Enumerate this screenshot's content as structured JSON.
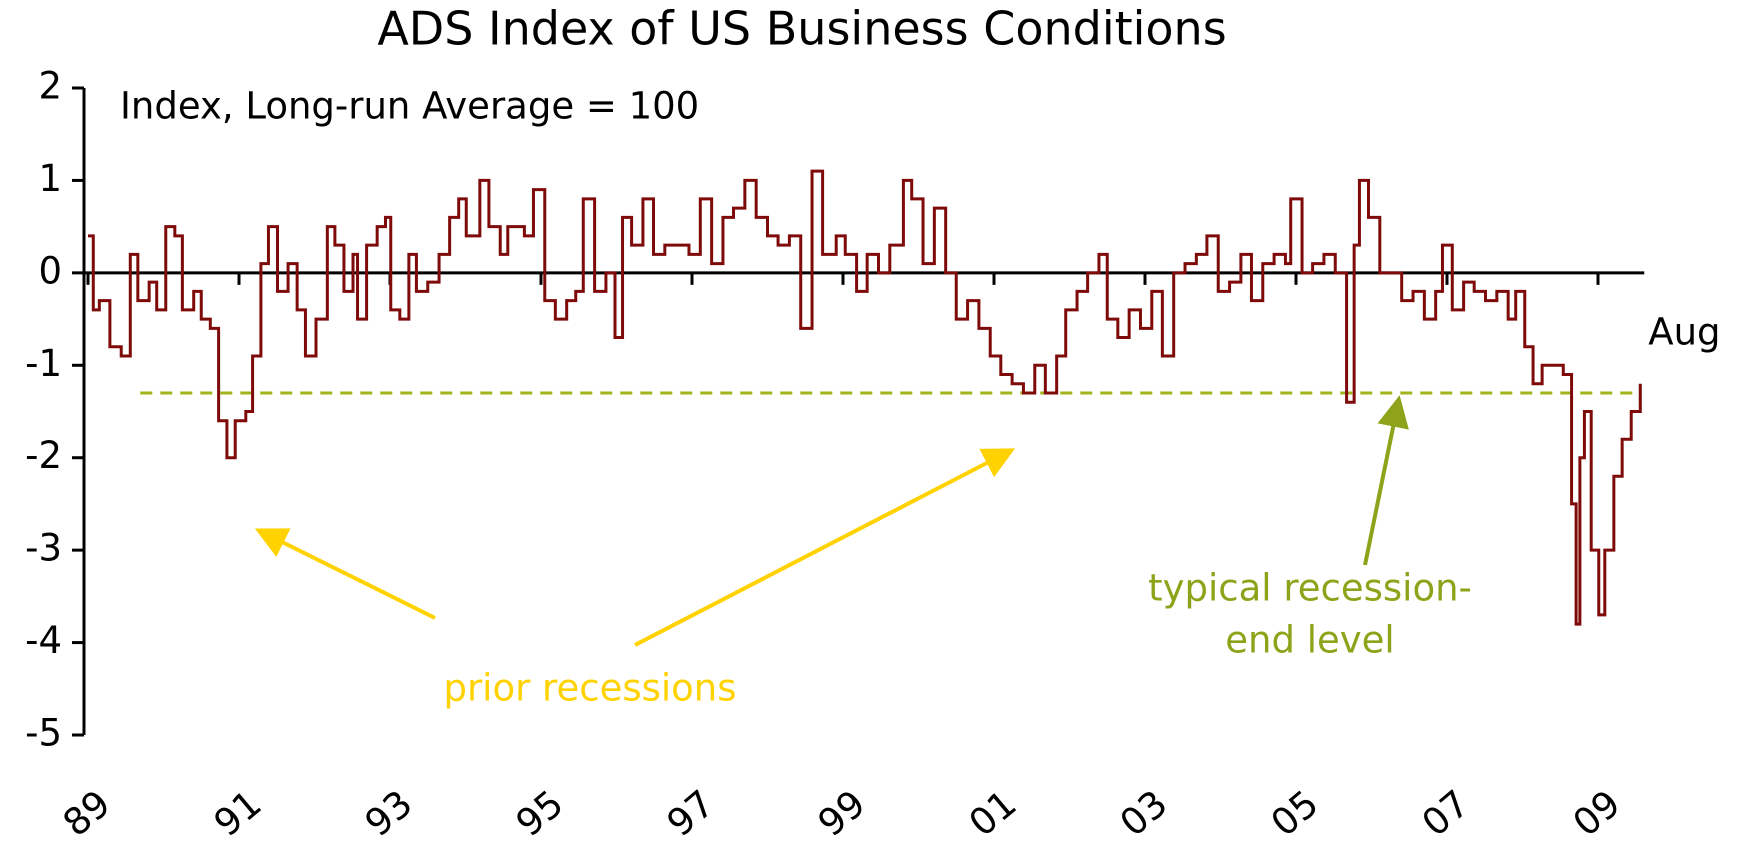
{
  "chart_data": {
    "type": "line",
    "title": "ADS Index of US Business Conditions",
    "subtitle": "Index, Long-run Average = 100",
    "end_label": "Aug",
    "annotations": [
      "prior recessions",
      "typical recession-",
      "end level"
    ],
    "reference_line": -1.3,
    "reference_color": "#a2b31c",
    "color": "#7f0a0a",
    "x": [
      1989.0,
      1989.07,
      1989.15,
      1989.29,
      1989.44,
      1989.56,
      1989.66,
      1989.81,
      1989.91,
      1990.03,
      1990.15,
      1990.25,
      1990.4,
      1990.5,
      1990.62,
      1990.73,
      1990.84,
      1990.95,
      1991.09,
      1991.18,
      1991.29,
      1991.39,
      1991.51,
      1991.65,
      1991.77,
      1991.88,
      1992.02,
      1992.17,
      1992.27,
      1992.39,
      1992.51,
      1992.57,
      1992.69,
      1992.83,
      1992.94,
      1993.01,
      1993.13,
      1993.25,
      1993.35,
      1993.5,
      1993.65,
      1993.79,
      1993.91,
      1994.01,
      1994.19,
      1994.31,
      1994.46,
      1994.56,
      1994.68,
      1994.78,
      1994.9,
      1995.05,
      1995.19,
      1995.34,
      1995.46,
      1995.56,
      1995.71,
      1995.86,
      1995.98,
      1996.08,
      1996.2,
      1996.35,
      1996.49,
      1996.64,
      1996.82,
      1996.96,
      1997.11,
      1997.26,
      1997.41,
      1997.55,
      1997.7,
      1997.85,
      1998.0,
      1998.14,
      1998.29,
      1998.44,
      1998.59,
      1998.73,
      1998.91,
      1999.03,
      1999.18,
      1999.32,
      1999.47,
      1999.62,
      1999.8,
      1999.91,
      2000.06,
      2000.21,
      2000.36,
      2000.5,
      2000.65,
      2000.8,
      2000.95,
      2001.09,
      2001.24,
      2001.39,
      2001.54,
      2001.68,
      2001.83,
      2001.95,
      2002.1,
      2002.24,
      2002.39,
      2002.5,
      2002.64,
      2002.79,
      2002.94,
      2003.09,
      2003.23,
      2003.38,
      2003.53,
      2003.68,
      2003.82,
      2003.97,
      2004.12,
      2004.27,
      2004.41,
      2004.56,
      2004.71,
      2004.86,
      2004.93,
      2005.08,
      2005.22,
      2005.37,
      2005.52,
      2005.67,
      2005.77,
      2005.84,
      2005.96,
      2006.11,
      2006.26,
      2006.4,
      2006.55,
      2006.7,
      2006.85,
      2006.94,
      2007.07,
      2007.22,
      2007.36,
      2007.51,
      2007.66,
      2007.81,
      2007.91,
      2008.03,
      2008.14,
      2008.26,
      2008.4,
      2008.54,
      2008.65,
      2008.71,
      2008.76,
      2008.82,
      2008.91,
      2009.01,
      2009.09,
      2009.21,
      2009.32,
      2009.44,
      2009.56
    ],
    "values": [
      0.4,
      -0.4,
      -0.3,
      -0.8,
      -0.9,
      0.2,
      -0.3,
      -0.1,
      -0.4,
      0.5,
      0.4,
      -0.4,
      -0.2,
      -0.5,
      -0.6,
      -1.6,
      -2.0,
      -1.6,
      -1.5,
      -0.9,
      0.1,
      0.5,
      -0.2,
      0.1,
      -0.4,
      -0.9,
      -0.5,
      0.5,
      0.3,
      -0.2,
      0.2,
      -0.5,
      0.3,
      0.5,
      0.6,
      -0.4,
      -0.5,
      0.2,
      -0.2,
      -0.1,
      0.2,
      0.6,
      0.8,
      0.4,
      1.0,
      0.5,
      0.2,
      0.5,
      0.5,
      0.4,
      0.9,
      -0.3,
      -0.5,
      -0.3,
      -0.2,
      0.8,
      -0.2,
      0.0,
      -0.7,
      0.6,
      0.3,
      0.8,
      0.2,
      0.3,
      0.3,
      0.2,
      0.8,
      0.1,
      0.6,
      0.7,
      1.0,
      0.6,
      0.4,
      0.3,
      0.4,
      -0.6,
      1.1,
      0.2,
      0.4,
      0.2,
      -0.2,
      0.2,
      0.0,
      0.3,
      1.0,
      0.8,
      0.1,
      0.7,
      0.0,
      -0.5,
      -0.3,
      -0.6,
      -0.9,
      -1.1,
      -1.2,
      -1.3,
      -1.0,
      -1.3,
      -0.9,
      -0.4,
      -0.2,
      0.0,
      0.2,
      -0.5,
      -0.7,
      -0.4,
      -0.6,
      -0.2,
      -0.9,
      0.0,
      0.1,
      0.2,
      0.4,
      -0.2,
      -0.1,
      0.2,
      -0.3,
      0.1,
      0.2,
      0.1,
      0.8,
      0.0,
      0.1,
      0.2,
      0.0,
      -1.4,
      0.3,
      1.0,
      0.6,
      0.0,
      0.0,
      -0.3,
      -0.2,
      -0.5,
      -0.2,
      0.3,
      -0.4,
      -0.1,
      -0.2,
      -0.3,
      -0.2,
      -0.5,
      -0.2,
      -0.8,
      -1.2,
      -1.0,
      -1.0,
      -1.1,
      -2.5,
      -3.8,
      -2.0,
      -1.5,
      -3.0,
      -3.7,
      -3.0,
      -2.2,
      -1.8,
      -1.5,
      -1.2
    ],
    "xlim": [
      1989,
      2010
    ],
    "ylim": [
      -5,
      2
    ],
    "yticks": [
      -5,
      -4,
      -3,
      -2,
      -1,
      0,
      1,
      2
    ],
    "xticks": [
      {
        "value": 1989,
        "label": "89"
      },
      {
        "value": 1991,
        "label": "91"
      },
      {
        "value": 1993,
        "label": "93"
      },
      {
        "value": 1995,
        "label": "95"
      },
      {
        "value": 1997,
        "label": "97"
      },
      {
        "value": 1999,
        "label": "99"
      },
      {
        "value": 2001,
        "label": "01"
      },
      {
        "value": 2003,
        "label": "03"
      },
      {
        "value": 2005,
        "label": "05"
      },
      {
        "value": 2007,
        "label": "07"
      },
      {
        "value": 2009,
        "label": "09"
      }
    ]
  }
}
